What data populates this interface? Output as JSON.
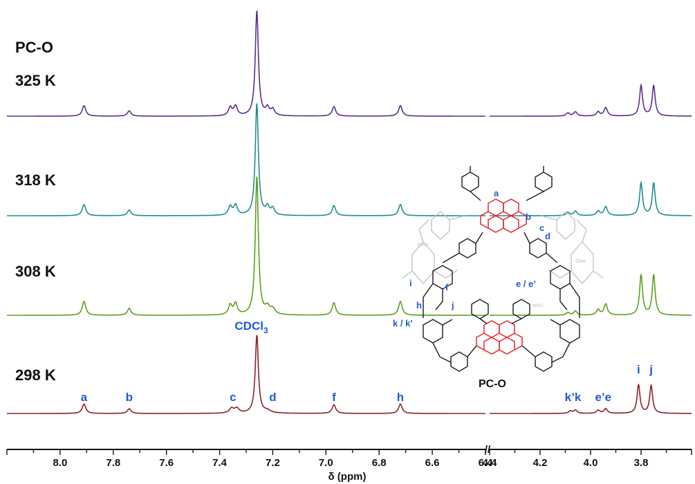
{
  "chart_data": {
    "type": "line",
    "title": "PC-O",
    "xlabel": "δ (ppm)",
    "x_reversed": true,
    "axis_break": true,
    "x_segments": [
      [
        8.2,
        6.4
      ],
      [
        4.4,
        3.6
      ]
    ],
    "x_ticks": [
      "8.0",
      "7.8",
      "7.6",
      "7.4",
      "7.2",
      "7.0",
      "6.8",
      "6.6",
      "6.4",
      "4.4",
      "4.2",
      "4.0",
      "3.8"
    ],
    "x_tick_values": [
      8.0,
      7.8,
      7.6,
      7.4,
      7.2,
      7.0,
      6.8,
      6.6,
      6.4,
      4.4,
      4.2,
      4.0,
      3.8
    ],
    "break_mark": "//",
    "series": [
      {
        "name": "325 K",
        "color": "#5a2d91",
        "peaks": [
          {
            "x": 7.91,
            "h": 0.1,
            "w": 0.008
          },
          {
            "x": 7.74,
            "h": 0.05,
            "w": 0.008
          },
          {
            "x": 7.36,
            "h": 0.08,
            "w": 0.008
          },
          {
            "x": 7.34,
            "h": 0.09,
            "w": 0.008
          },
          {
            "x": 7.26,
            "h": 1.0,
            "w": 0.007
          },
          {
            "x": 7.22,
            "h": 0.07,
            "w": 0.008
          },
          {
            "x": 7.2,
            "h": 0.06,
            "w": 0.008
          },
          {
            "x": 6.97,
            "h": 0.09,
            "w": 0.008
          },
          {
            "x": 6.72,
            "h": 0.1,
            "w": 0.008
          },
          {
            "x": 4.09,
            "h": 0.03,
            "w": 0.008
          },
          {
            "x": 4.06,
            "h": 0.04,
            "w": 0.008
          },
          {
            "x": 3.97,
            "h": 0.04,
            "w": 0.008
          },
          {
            "x": 3.94,
            "h": 0.08,
            "w": 0.008
          },
          {
            "x": 3.8,
            "h": 0.29,
            "w": 0.007
          },
          {
            "x": 3.75,
            "h": 0.29,
            "w": 0.007
          }
        ]
      },
      {
        "name": "318 K",
        "color": "#1e8c8c",
        "peaks": [
          {
            "x": 7.91,
            "h": 0.1,
            "w": 0.008
          },
          {
            "x": 7.74,
            "h": 0.05,
            "w": 0.008
          },
          {
            "x": 7.36,
            "h": 0.08,
            "w": 0.008
          },
          {
            "x": 7.34,
            "h": 0.09,
            "w": 0.008
          },
          {
            "x": 7.26,
            "h": 1.0,
            "w": 0.007
          },
          {
            "x": 7.22,
            "h": 0.07,
            "w": 0.008
          },
          {
            "x": 7.2,
            "h": 0.06,
            "w": 0.008
          },
          {
            "x": 6.97,
            "h": 0.09,
            "w": 0.008
          },
          {
            "x": 6.72,
            "h": 0.1,
            "w": 0.008
          },
          {
            "x": 4.09,
            "h": 0.03,
            "w": 0.008
          },
          {
            "x": 4.06,
            "h": 0.04,
            "w": 0.008
          },
          {
            "x": 3.97,
            "h": 0.04,
            "w": 0.008
          },
          {
            "x": 3.94,
            "h": 0.08,
            "w": 0.008
          },
          {
            "x": 3.8,
            "h": 0.29,
            "w": 0.007
          },
          {
            "x": 3.75,
            "h": 0.29,
            "w": 0.007
          }
        ]
      },
      {
        "name": "308 K",
        "color": "#5a9e1e",
        "peaks": [
          {
            "x": 7.91,
            "h": 0.1,
            "w": 0.008
          },
          {
            "x": 7.74,
            "h": 0.05,
            "w": 0.008
          },
          {
            "x": 7.36,
            "h": 0.07,
            "w": 0.008
          },
          {
            "x": 7.34,
            "h": 0.08,
            "w": 0.008
          },
          {
            "x": 7.26,
            "h": 1.0,
            "w": 0.007
          },
          {
            "x": 7.22,
            "h": 0.05,
            "w": 0.01
          },
          {
            "x": 7.2,
            "h": 0.04,
            "w": 0.01
          },
          {
            "x": 6.97,
            "h": 0.09,
            "w": 0.008
          },
          {
            "x": 6.72,
            "h": 0.1,
            "w": 0.008
          },
          {
            "x": 4.09,
            "h": 0.02,
            "w": 0.008
          },
          {
            "x": 4.06,
            "h": 0.03,
            "w": 0.008
          },
          {
            "x": 3.97,
            "h": 0.04,
            "w": 0.008
          },
          {
            "x": 3.94,
            "h": 0.08,
            "w": 0.008
          },
          {
            "x": 3.8,
            "h": 0.29,
            "w": 0.007
          },
          {
            "x": 3.75,
            "h": 0.29,
            "w": 0.007
          }
        ]
      },
      {
        "name": "298 K",
        "color": "#8c1e28",
        "peaks": [
          {
            "x": 7.91,
            "h": 0.12,
            "w": 0.008
          },
          {
            "x": 7.74,
            "h": 0.06,
            "w": 0.008
          },
          {
            "x": 7.355,
            "h": 0.06,
            "w": 0.01
          },
          {
            "x": 7.335,
            "h": 0.06,
            "w": 0.01
          },
          {
            "x": 7.26,
            "h": 0.99,
            "w": 0.007
          },
          {
            "x": 7.22,
            "h": 0.03,
            "w": 0.015
          },
          {
            "x": 6.97,
            "h": 0.11,
            "w": 0.008
          },
          {
            "x": 6.72,
            "h": 0.12,
            "w": 0.008
          },
          {
            "x": 4.08,
            "h": 0.03,
            "w": 0.008
          },
          {
            "x": 4.06,
            "h": 0.04,
            "w": 0.008
          },
          {
            "x": 3.97,
            "h": 0.04,
            "w": 0.008
          },
          {
            "x": 3.94,
            "h": 0.06,
            "w": 0.008
          },
          {
            "x": 3.81,
            "h": 0.36,
            "w": 0.007
          },
          {
            "x": 3.76,
            "h": 0.35,
            "w": 0.007
          }
        ]
      }
    ],
    "peak_labels": [
      {
        "text": "a",
        "x": 7.91
      },
      {
        "text": "b",
        "x": 7.74
      },
      {
        "text": "c",
        "x": 7.35
      },
      {
        "text": "d",
        "x": 7.2
      },
      {
        "text": "f",
        "x": 6.97
      },
      {
        "text": "h",
        "x": 6.72
      },
      {
        "text": "k’k",
        "x": 4.07
      },
      {
        "text": "e’e",
        "x": 3.95
      },
      {
        "text": "i",
        "x": 3.81
      },
      {
        "text": "j",
        "x": 3.76
      }
    ],
    "solvent_label": {
      "main": "CDCl",
      "sub": "3",
      "x": 7.26
    }
  },
  "molecule": {
    "name": "PC-O",
    "highlight_color": "#e8262b",
    "label_color": "#1f5ad6",
    "labels": [
      "a",
      "b",
      "c",
      "d",
      "e / e’",
      "f",
      "h",
      "i",
      "j",
      "k / k’"
    ],
    "substituent_labels": [
      "MeO",
      "OMe"
    ]
  }
}
